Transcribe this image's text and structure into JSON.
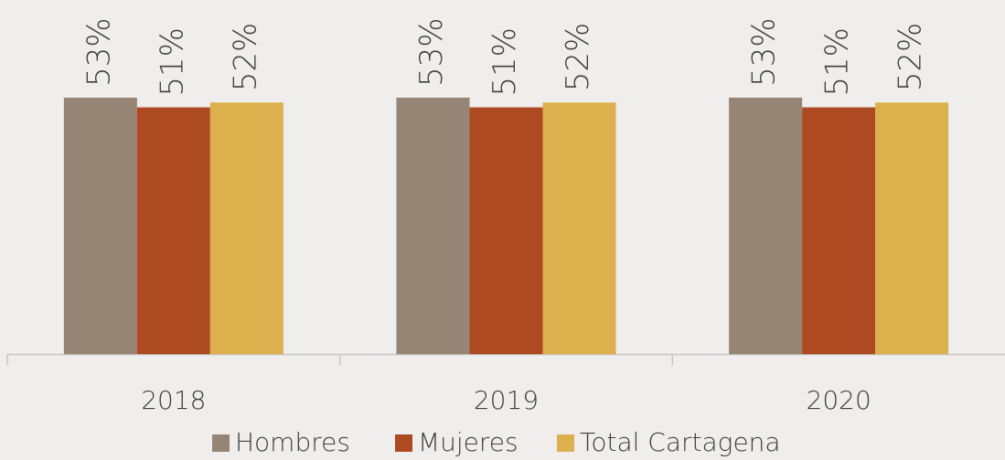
{
  "chart_data": {
    "type": "bar",
    "categories": [
      "2018",
      "2019",
      "2020"
    ],
    "series": [
      {
        "name": "Hombres",
        "color": "#968474",
        "values": [
          53,
          53,
          53
        ],
        "value_labels": [
          "53%",
          "53%",
          "53%"
        ]
      },
      {
        "name": "Mujeres",
        "color": "#ad4a22",
        "values": [
          51,
          51,
          51
        ],
        "value_labels": [
          "51%",
          "51%",
          "51%"
        ]
      },
      {
        "name": "Total Cartagena",
        "color": "#dcb04c",
        "values": [
          52,
          52,
          52
        ],
        "value_labels": [
          "52%",
          "52%",
          "52%"
        ]
      }
    ]
  }
}
